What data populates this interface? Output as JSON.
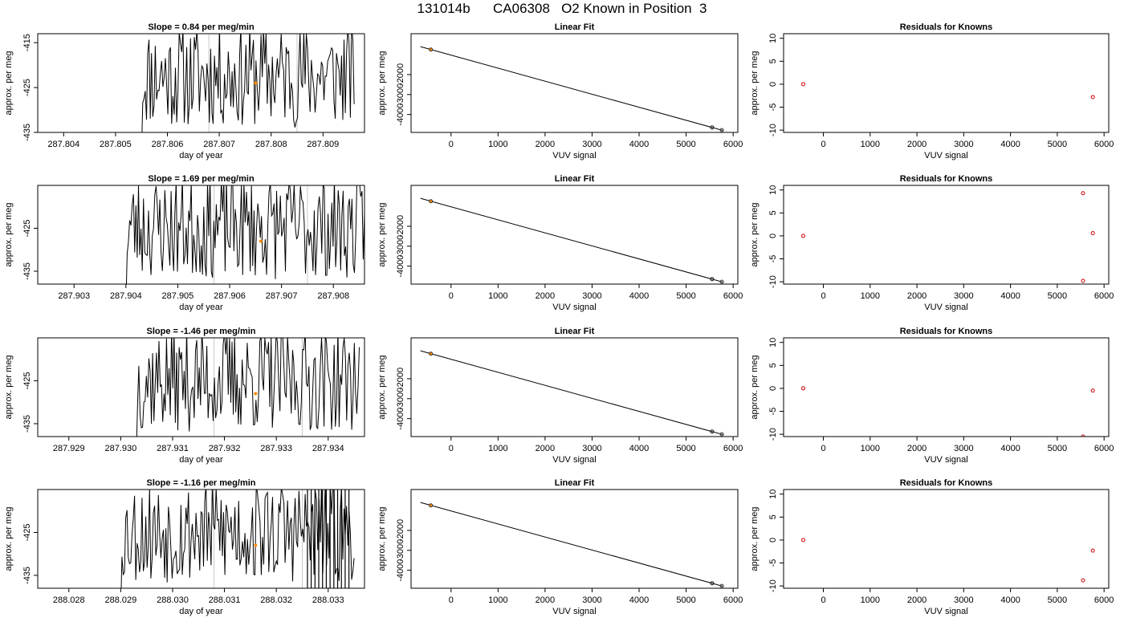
{
  "page_title": "131014b      CA06308   O2 Known in Position  3",
  "colors": {
    "line": "#000000",
    "frame": "#000000",
    "known_point": "#ff8c00",
    "residual_point": "#cc0000",
    "marker_line": "#c8c8c8"
  },
  "chart_data": [
    {
      "type": "line",
      "panel": "time-series-1",
      "title": "Slope =  0.84  per meg/min",
      "xlabel": "day of year",
      "ylabel": "approx. per meg",
      "xlim": [
        287.8035,
        287.8098
      ],
      "ylim": [
        -435,
        -413
      ],
      "xticks": [
        287.804,
        287.805,
        287.806,
        287.807,
        287.808,
        287.809
      ],
      "xtick_labels": [
        "287.804",
        "287.805",
        "287.806",
        "287.807",
        "287.808",
        "287.809"
      ],
      "yticks": [
        -415,
        -425,
        -435
      ],
      "ytick_labels": [
        "-415",
        "-425",
        "-435"
      ],
      "x_start": 287.8055,
      "x_end": 287.8096,
      "seed": 11,
      "markers": [
        287.8068,
        287.8085
      ],
      "highlight": {
        "x": 287.8077,
        "y": -424
      }
    },
    {
      "type": "scatter",
      "panel": "linear-fit-1",
      "title": "Linear Fit",
      "xlabel": "VUV signal",
      "ylabel": "approx. per meg",
      "xlim": [
        -850,
        6100
      ],
      "ylim": [
        -4900,
        50
      ],
      "xticks": [
        0,
        1000,
        2000,
        3000,
        4000,
        5000,
        6000
      ],
      "xtick_labels": [
        "0",
        "1000",
        "2000",
        "3000",
        "4000",
        "5000",
        "6000"
      ],
      "yticks": [
        -2000,
        -3000,
        -4000
      ],
      "ytick_labels": [
        "-2000",
        "-3000",
        "-4000"
      ],
      "fit_line": {
        "x0": -650,
        "y0": -600,
        "x1": 5780,
        "y1": -4800
      },
      "points": [
        {
          "x": -430,
          "y": -745,
          "kind": "known"
        },
        {
          "x": -430,
          "y": -745,
          "kind": "standard"
        },
        {
          "x": 5550,
          "y": -4650,
          "kind": "standard"
        },
        {
          "x": 5555,
          "y": -4655,
          "kind": "standard"
        },
        {
          "x": 5760,
          "y": -4785,
          "kind": "standard"
        }
      ]
    },
    {
      "type": "scatter",
      "panel": "residuals-1",
      "title": "Residuals for Knowns",
      "xlabel": "VUV signal",
      "ylabel": "approx. per meg",
      "xlim": [
        -850,
        6100
      ],
      "ylim": [
        -10.5,
        11
      ],
      "xticks": [
        0,
        1000,
        2000,
        3000,
        4000,
        5000,
        6000
      ],
      "xtick_labels": [
        "0",
        "1000",
        "2000",
        "3000",
        "4000",
        "5000",
        "6000"
      ],
      "yticks": [
        -10,
        -5,
        0,
        5,
        10
      ],
      "ytick_labels": [
        "-10",
        "-5",
        "0",
        "5",
        "10"
      ],
      "points": [
        {
          "x": -430,
          "y": 0
        },
        {
          "x": 5760,
          "y": -2.8
        }
      ]
    },
    {
      "type": "line",
      "panel": "time-series-2",
      "title": "Slope =  1.69  per meg/min",
      "xlabel": "day of year",
      "ylabel": "approx. per meg",
      "xlim": [
        287.9023,
        287.9086
      ],
      "ylim": [
        -438,
        -415
      ],
      "xticks": [
        287.903,
        287.904,
        287.905,
        287.906,
        287.907,
        287.908
      ],
      "xtick_labels": [
        "287.903",
        "287.904",
        "287.905",
        "287.906",
        "287.907",
        "287.908"
      ],
      "yticks": [
        -425,
        -435
      ],
      "ytick_labels": [
        "-425",
        "-435"
      ],
      "x_start": 287.904,
      "x_end": 287.9086,
      "seed": 23,
      "markers": [
        287.9057,
        287.9075
      ],
      "highlight": {
        "x": 287.9066,
        "y": -428
      }
    },
    {
      "type": "scatter",
      "panel": "linear-fit-2",
      "title": "Linear Fit",
      "xlabel": "VUV signal",
      "ylabel": "approx. per meg",
      "xlim": [
        -850,
        6100
      ],
      "ylim": [
        -4900,
        50
      ],
      "xticks": [
        0,
        1000,
        2000,
        3000,
        4000,
        5000,
        6000
      ],
      "xtick_labels": [
        "0",
        "1000",
        "2000",
        "3000",
        "4000",
        "5000",
        "6000"
      ],
      "yticks": [
        -2000,
        -3000,
        -4000
      ],
      "ytick_labels": [
        "-2000",
        "-3000",
        "-4000"
      ],
      "fit_line": {
        "x0": -650,
        "y0": -600,
        "x1": 5780,
        "y1": -4800
      },
      "points": [
        {
          "x": -430,
          "y": -745,
          "kind": "known"
        },
        {
          "x": -430,
          "y": -745,
          "kind": "standard"
        },
        {
          "x": 5550,
          "y": -4650,
          "kind": "standard"
        },
        {
          "x": 5555,
          "y": -4655,
          "kind": "standard"
        },
        {
          "x": 5760,
          "y": -4785,
          "kind": "standard"
        }
      ]
    },
    {
      "type": "scatter",
      "panel": "residuals-2",
      "title": "Residuals for Knowns",
      "xlabel": "VUV signal",
      "ylabel": "approx. per meg",
      "xlim": [
        -850,
        6100
      ],
      "ylim": [
        -10.5,
        11
      ],
      "xticks": [
        0,
        1000,
        2000,
        3000,
        4000,
        5000,
        6000
      ],
      "xtick_labels": [
        "0",
        "1000",
        "2000",
        "3000",
        "4000",
        "5000",
        "6000"
      ],
      "yticks": [
        -10,
        -5,
        0,
        5,
        10
      ],
      "ytick_labels": [
        "-10",
        "-5",
        "0",
        "5",
        "10"
      ],
      "points": [
        {
          "x": -430,
          "y": 0
        },
        {
          "x": 5550,
          "y": 9.3
        },
        {
          "x": 5760,
          "y": 0.6
        },
        {
          "x": 5550,
          "y": -9.8
        }
      ]
    },
    {
      "type": "line",
      "panel": "time-series-3",
      "title": "Slope =  -1.46  per meg/min",
      "xlabel": "day of year",
      "ylabel": "approx. per meg",
      "xlim": [
        287.9284,
        287.9347
      ],
      "ylim": [
        -438,
        -415
      ],
      "xticks": [
        287.929,
        287.93,
        287.931,
        287.932,
        287.933,
        287.934
      ],
      "xtick_labels": [
        "287.929",
        "287.930",
        "287.931",
        "287.932",
        "287.933",
        "287.934"
      ],
      "yticks": [
        -425,
        -435
      ],
      "ytick_labels": [
        "-425",
        "-435"
      ],
      "x_start": 287.9303,
      "x_end": 287.9346,
      "seed": 37,
      "markers": [
        287.9318,
        287.9335
      ],
      "highlight": {
        "x": 287.9326,
        "y": -428
      }
    },
    {
      "type": "scatter",
      "panel": "linear-fit-3",
      "title": "Linear Fit",
      "xlabel": "VUV signal",
      "ylabel": "approx. per meg",
      "xlim": [
        -850,
        6100
      ],
      "ylim": [
        -4900,
        50
      ],
      "xticks": [
        0,
        1000,
        2000,
        3000,
        4000,
        5000,
        6000
      ],
      "xtick_labels": [
        "0",
        "1000",
        "2000",
        "3000",
        "4000",
        "5000",
        "6000"
      ],
      "yticks": [
        -2000,
        -3000,
        -4000
      ],
      "ytick_labels": [
        "-2000",
        "-3000",
        "-4000"
      ],
      "fit_line": {
        "x0": -650,
        "y0": -600,
        "x1": 5780,
        "y1": -4800
      },
      "points": [
        {
          "x": -430,
          "y": -745,
          "kind": "known"
        },
        {
          "x": -430,
          "y": -745,
          "kind": "standard"
        },
        {
          "x": 5550,
          "y": -4650,
          "kind": "standard"
        },
        {
          "x": 5555,
          "y": -4655,
          "kind": "standard"
        },
        {
          "x": 5760,
          "y": -4785,
          "kind": "standard"
        }
      ]
    },
    {
      "type": "scatter",
      "panel": "residuals-3",
      "title": "Residuals for Knowns",
      "xlabel": "VUV signal",
      "ylabel": "approx. per meg",
      "xlim": [
        -850,
        6100
      ],
      "ylim": [
        -10.5,
        11
      ],
      "xticks": [
        0,
        1000,
        2000,
        3000,
        4000,
        5000,
        6000
      ],
      "xtick_labels": [
        "0",
        "1000",
        "2000",
        "3000",
        "4000",
        "5000",
        "6000"
      ],
      "yticks": [
        -10,
        -5,
        0,
        5,
        10
      ],
      "ytick_labels": [
        "-10",
        "-5",
        "0",
        "5",
        "10"
      ],
      "points": [
        {
          "x": -430,
          "y": 0
        },
        {
          "x": 5760,
          "y": -0.5
        },
        {
          "x": 5550,
          "y": -10.5
        }
      ]
    },
    {
      "type": "line",
      "panel": "time-series-4",
      "title": "Slope =  -1.16  per meg/min",
      "xlabel": "day of year",
      "ylabel": "approx. per meg",
      "xlim": [
        288.0274,
        288.0337
      ],
      "ylim": [
        -438,
        -415
      ],
      "xticks": [
        288.028,
        288.029,
        288.03,
        288.031,
        288.032,
        288.033
      ],
      "xtick_labels": [
        "288.028",
        "288.029",
        "288.030",
        "288.031",
        "288.032",
        "288.033"
      ],
      "yticks": [
        -425,
        -435
      ],
      "ytick_labels": [
        "-425",
        "-435"
      ],
      "x_start": 288.029,
      "x_end": 288.0335,
      "seed": 53,
      "markers": [
        288.0308,
        288.0325
      ],
      "spikes": {
        "from": 288.0326,
        "to": 288.0334,
        "count": 12
      },
      "highlight": {
        "x": 288.0316,
        "y": -428
      }
    },
    {
      "type": "scatter",
      "panel": "linear-fit-4",
      "title": "Linear Fit",
      "xlabel": "VUV signal",
      "ylabel": "approx. per meg",
      "xlim": [
        -850,
        6100
      ],
      "ylim": [
        -4900,
        50
      ],
      "xticks": [
        0,
        1000,
        2000,
        3000,
        4000,
        5000,
        6000
      ],
      "xtick_labels": [
        "0",
        "1000",
        "2000",
        "3000",
        "4000",
        "5000",
        "6000"
      ],
      "yticks": [
        -2000,
        -3000,
        -4000
      ],
      "ytick_labels": [
        "-2000",
        "-3000",
        "-4000"
      ],
      "fit_line": {
        "x0": -650,
        "y0": -600,
        "x1": 5780,
        "y1": -4800
      },
      "points": [
        {
          "x": -430,
          "y": -745,
          "kind": "known"
        },
        {
          "x": -430,
          "y": -745,
          "kind": "standard"
        },
        {
          "x": 5550,
          "y": -4650,
          "kind": "standard"
        },
        {
          "x": 5555,
          "y": -4655,
          "kind": "standard"
        },
        {
          "x": 5760,
          "y": -4785,
          "kind": "standard"
        }
      ]
    },
    {
      "type": "scatter",
      "panel": "residuals-4",
      "title": "Residuals for Knowns",
      "xlabel": "VUV signal",
      "ylabel": "approx. per meg",
      "xlim": [
        -850,
        6100
      ],
      "ylim": [
        -10.5,
        11
      ],
      "xticks": [
        0,
        1000,
        2000,
        3000,
        4000,
        5000,
        6000
      ],
      "xtick_labels": [
        "0",
        "1000",
        "2000",
        "3000",
        "4000",
        "5000",
        "6000"
      ],
      "yticks": [
        -10,
        -5,
        0,
        5,
        10
      ],
      "ytick_labels": [
        "-10",
        "-5",
        "0",
        "5",
        "10"
      ],
      "points": [
        {
          "x": -430,
          "y": 0
        },
        {
          "x": 5760,
          "y": -2.3
        },
        {
          "x": 5550,
          "y": -8.8
        }
      ]
    }
  ]
}
